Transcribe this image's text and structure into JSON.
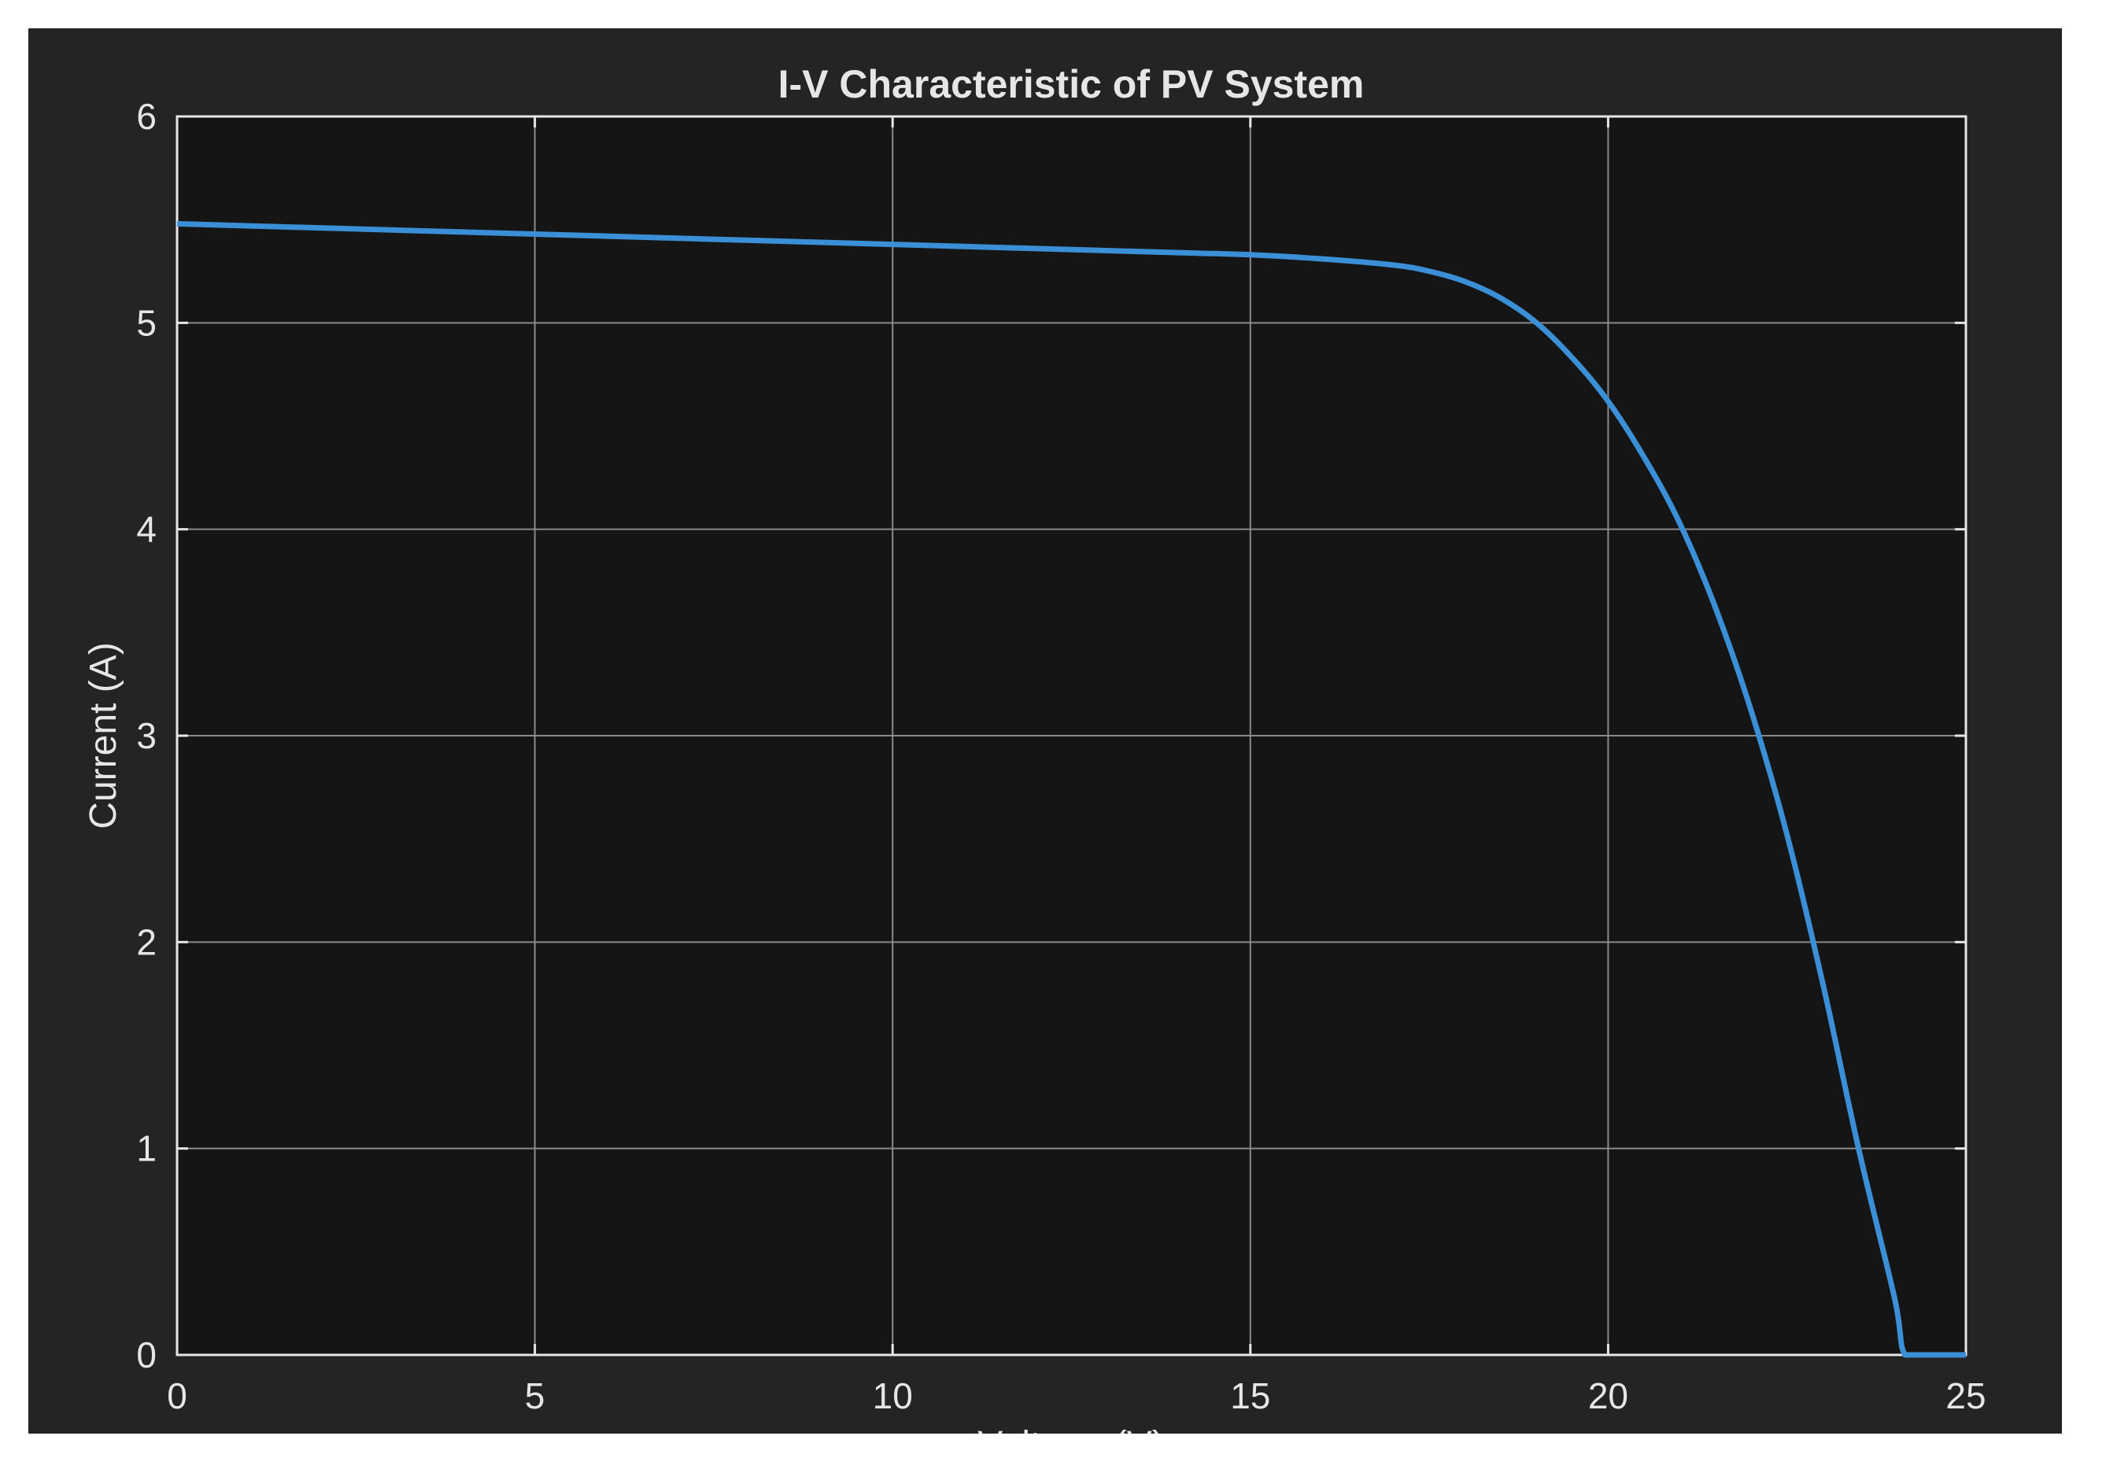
{
  "chart_data": {
    "type": "line",
    "title": "I-V Characteristic of PV System",
    "xlabel": "Voltage (V)",
    "ylabel": "Current (A)",
    "xlim": [
      0,
      25
    ],
    "ylim": [
      0,
      6
    ],
    "xticks": [
      0,
      5,
      10,
      15,
      20,
      25
    ],
    "yticks": [
      0,
      1,
      2,
      3,
      4,
      5,
      6
    ],
    "grid": true,
    "series": [
      {
        "color": "#3a8fd6",
        "x": [
          0,
          2,
          4,
          6,
          8,
          10,
          12,
          14,
          15,
          16,
          17,
          17.5,
          18,
          18.5,
          19,
          19.5,
          20,
          20.5,
          21,
          21.5,
          22,
          22.5,
          23,
          23.5,
          24,
          24.15,
          24.5,
          25
        ],
        "y": [
          5.48,
          5.46,
          5.44,
          5.42,
          5.4,
          5.38,
          5.36,
          5.34,
          5.33,
          5.31,
          5.28,
          5.25,
          5.2,
          5.12,
          5.0,
          4.83,
          4.62,
          4.35,
          4.03,
          3.62,
          3.12,
          2.52,
          1.8,
          1.0,
          0.28,
          0.0,
          0.0,
          0.0
        ]
      }
    ]
  },
  "colors": {
    "figure_background": "#242424",
    "axes_background": "#151515",
    "grid": "#8a8a8a",
    "axis": "#e6e6e6",
    "text": "#e6e6e6",
    "line": "#3a8fd6"
  }
}
